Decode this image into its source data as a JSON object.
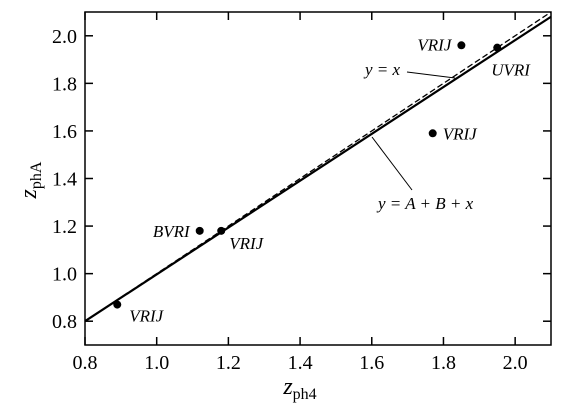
{
  "chart_data": {
    "type": "scatter",
    "xlabel": "z",
    "xlabel_sub": "ph4",
    "ylabel": "z",
    "ylabel_sub": "phA",
    "xlim": [
      0.8,
      2.1
    ],
    "ylim": [
      0.7,
      2.1
    ],
    "xticks": [
      0.8,
      {
        "value": 1,
        "label": "1.0"
      },
      1.2,
      1.4,
      1.6,
      1.8,
      {
        "value": 2,
        "label": "2.0"
      }
    ],
    "yticks": [
      0.8,
      {
        "value": 1,
        "label": "1.0"
      },
      1.2,
      1.4,
      1.6,
      1.8,
      {
        "value": 2,
        "label": "2.0"
      }
    ],
    "points": {
      "color": "#000000",
      "x": [
        0.89,
        1.12,
        1.18,
        1.77,
        1.85,
        1.95
      ],
      "values": [
        0.87,
        1.18,
        1.18,
        1.59,
        1.96,
        1.95
      ],
      "labels": [
        "VRIJ",
        "BVRI",
        "VRIJ",
        "VRIJ",
        "VRIJ",
        "UVRI"
      ]
    },
    "lines": [
      {
        "name": "y = x",
        "style": "dashed",
        "x": [
          0.8,
          2.1
        ],
        "values": [
          0.8,
          2.1
        ]
      },
      {
        "name": "y = A + B + x",
        "style": "solid",
        "x": [
          0.8,
          2.1
        ],
        "values": [
          0.8,
          2.08
        ]
      }
    ]
  }
}
